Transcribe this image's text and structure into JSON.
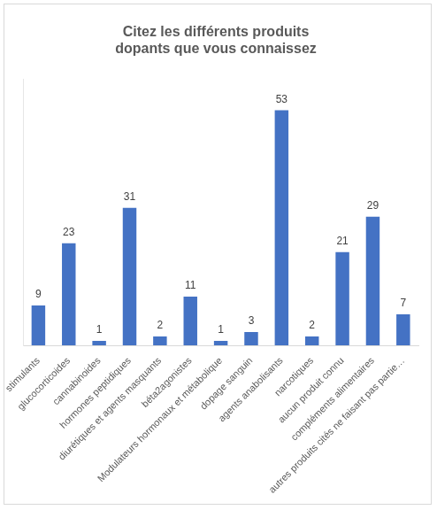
{
  "chart_data": {
    "type": "bar",
    "title": "Citez les différents produits dopants que vous connaissez",
    "categories": [
      "stimulants",
      "glucocorticoides",
      "cannabinoides",
      "hormones peptidiques",
      "diurétiques et agents masquants",
      "béta2agonistes",
      "Modulateurs hormonaux et métabolique",
      "dopage sanguin",
      "agents anabolisants",
      "narcotiques",
      "aucun produit connu",
      "compléments alimentaires",
      "autres produits cités ne faisant pas partie…"
    ],
    "values": [
      9,
      23,
      1,
      31,
      2,
      11,
      1,
      3,
      53,
      2,
      21,
      29,
      7
    ],
    "color": "#4472c4",
    "ylim": [
      0,
      60
    ],
    "grid": false,
    "data_labels": true,
    "tick_labels": "x"
  }
}
